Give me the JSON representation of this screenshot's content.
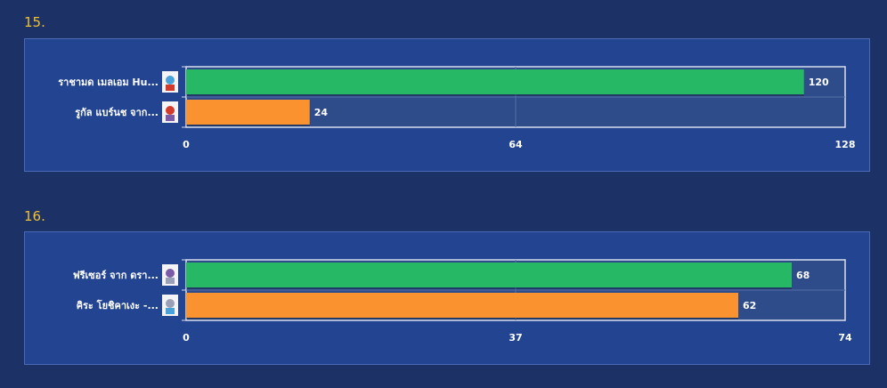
{
  "chart_data": [
    {
      "type": "bar",
      "orientation": "horizontal",
      "number": "15.",
      "categories": [
        "ราชามด เมลเอม Hu...",
        "รูกัล แบร์นช จาก..."
      ],
      "values": [
        120,
        24
      ],
      "colors": [
        "#26b865",
        "#fb9230"
      ],
      "xlim": [
        0,
        128
      ],
      "ticks": [
        0,
        64,
        128
      ],
      "icons": [
        "character-thumbnail-icon",
        "character-thumbnail-icon"
      ]
    },
    {
      "type": "bar",
      "orientation": "horizontal",
      "number": "16.",
      "categories": [
        "ฟรีเซอร์ จาก ดรา...",
        "คิระ โยชิคาเงะ -..."
      ],
      "values": [
        68,
        62
      ],
      "colors": [
        "#26b865",
        "#fb9230"
      ],
      "xlim": [
        0,
        74
      ],
      "ticks": [
        0,
        37,
        74
      ],
      "icons": [
        "character-thumbnail-icon",
        "character-thumbnail-icon"
      ]
    }
  ],
  "plot_background": "#2e4b8a",
  "panel_background": "#234591",
  "page_background": "#1c3166",
  "title_color": "#f2c12e"
}
